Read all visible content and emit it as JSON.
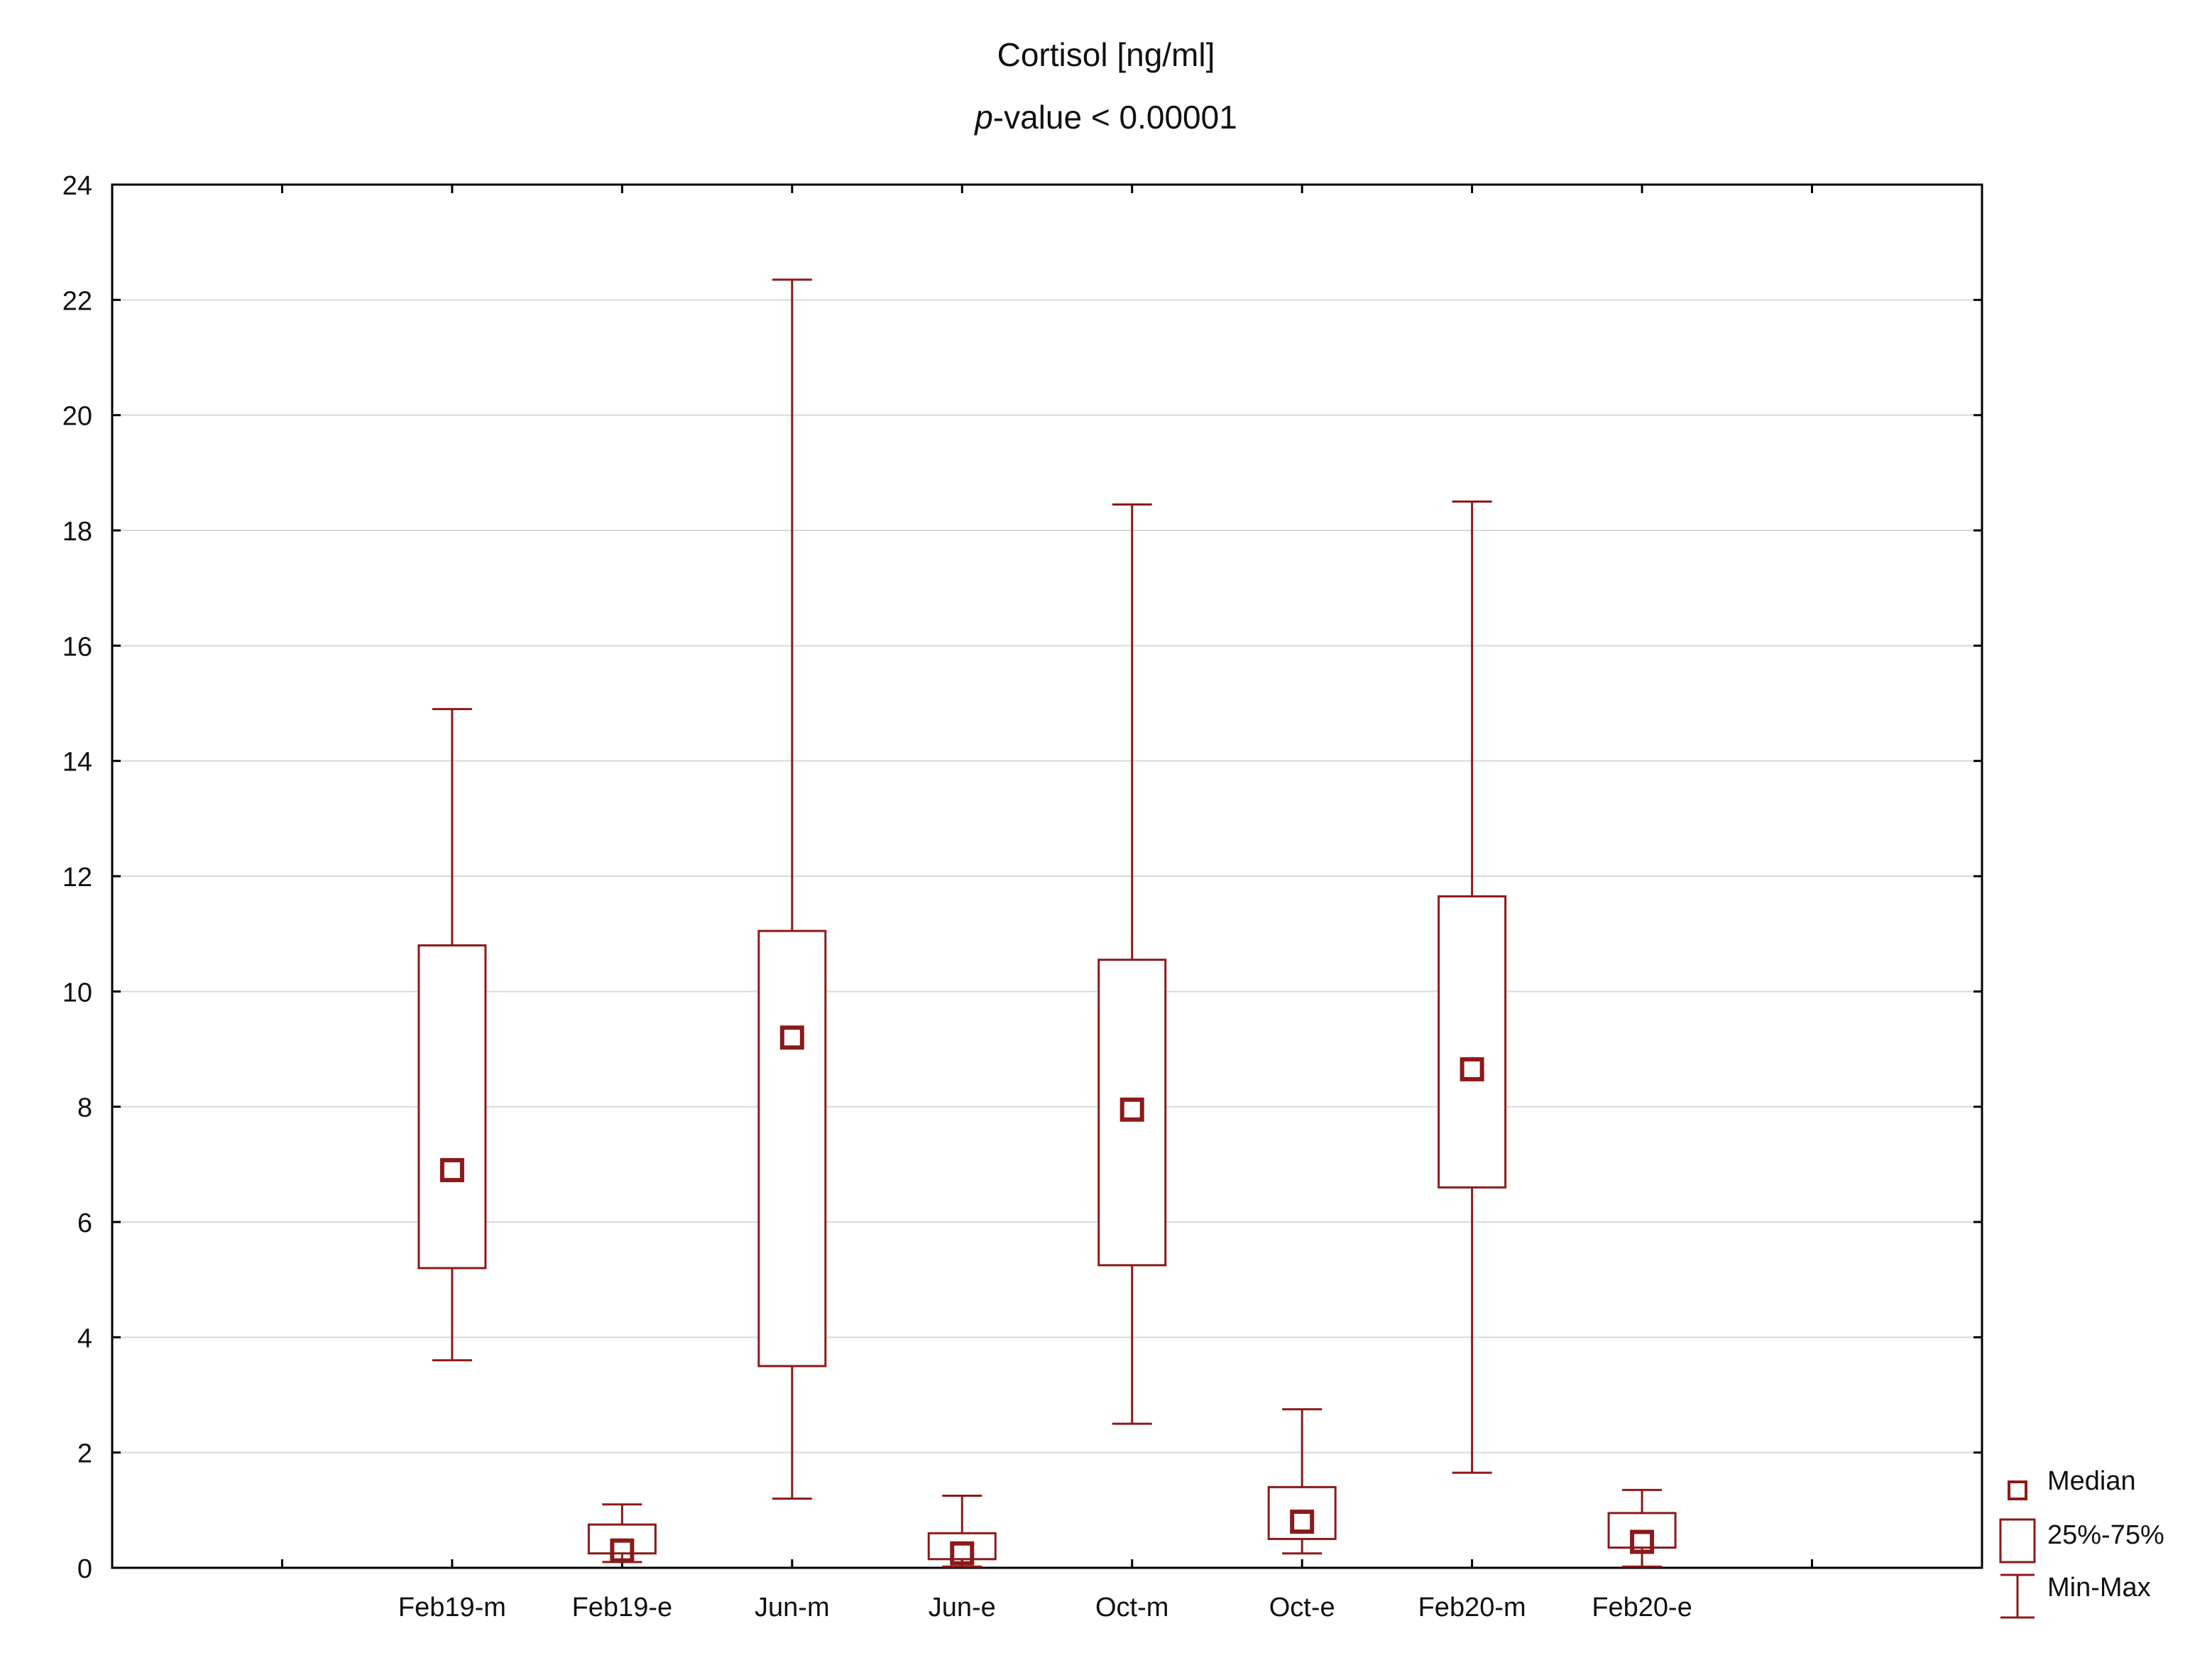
{
  "chart_data": {
    "type": "boxplot",
    "title": "Cortisol [ng/ml]",
    "subtitle_italic": "p",
    "subtitle_rest": "-value < 0.00001",
    "xlabel": "",
    "ylabel": "",
    "ylim": [
      0,
      24
    ],
    "yticks": [
      0,
      2,
      4,
      6,
      8,
      10,
      12,
      14,
      16,
      18,
      20,
      22,
      24
    ],
    "grid": true,
    "color": "#8B1A1A",
    "categories": [
      "Feb19-m",
      "Feb19-e",
      "Jun-m",
      "Jun-e",
      "Oct-m",
      "Oct-e",
      "Feb20-m",
      "Feb20-e"
    ],
    "min": [
      3.6,
      0.1,
      1.2,
      0.02,
      2.5,
      0.25,
      1.65,
      0.02
    ],
    "q1": [
      5.2,
      0.25,
      3.5,
      0.15,
      5.25,
      0.5,
      6.6,
      0.35
    ],
    "median": [
      6.9,
      0.3,
      9.2,
      0.25,
      7.95,
      0.8,
      8.65,
      0.45
    ],
    "q3": [
      10.8,
      0.75,
      11.05,
      0.6,
      10.55,
      1.4,
      11.65,
      0.95
    ],
    "max": [
      14.9,
      1.1,
      22.35,
      1.25,
      18.45,
      2.75,
      18.5,
      1.35
    ],
    "legend_position": "bottom-right",
    "legend": [
      "Median",
      "25%-75%",
      "Min-Max"
    ]
  }
}
